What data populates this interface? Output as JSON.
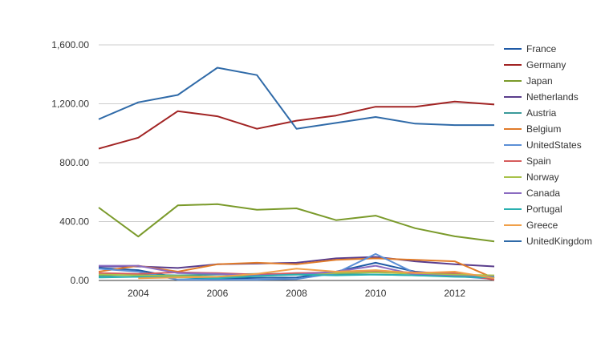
{
  "chart_data": {
    "type": "line",
    "title": "",
    "xlabel": "",
    "ylabel": "",
    "x": [
      2003,
      2004,
      2005,
      2006,
      2007,
      2008,
      2009,
      2010,
      2011,
      2012,
      2013
    ],
    "xlim": [
      2003,
      2013
    ],
    "ylim": [
      0,
      1600
    ],
    "y_ticks": [
      0,
      400,
      800,
      1200,
      1600
    ],
    "y_tick_labels": [
      "0.00",
      "400.00",
      "800.00",
      "1,200.00",
      "1,600.00"
    ],
    "x_ticks": [
      2004,
      2006,
      2008,
      2010,
      2012
    ],
    "x_tick_labels": [
      "2004",
      "2006",
      "2008",
      "2010",
      "2012"
    ],
    "grid": "horizontal",
    "legend_position": "right",
    "series": [
      {
        "name": "France",
        "color": "#1f5aa6",
        "values": [
          85,
          70,
          20,
          12,
          18,
          20,
          60,
          120,
          60,
          40,
          20
        ]
      },
      {
        "name": "Germany",
        "color": "#a12323",
        "values": [
          895,
          970,
          1150,
          1115,
          1030,
          1085,
          1120,
          1180,
          1180,
          1215,
          1195
        ]
      },
      {
        "name": "Japan",
        "color": "#7a9a2a",
        "values": [
          495,
          298,
          510,
          518,
          480,
          490,
          410,
          440,
          355,
          300,
          265
        ]
      },
      {
        "name": "Netherlands",
        "color": "#5a3d8c",
        "values": [
          95,
          95,
          85,
          110,
          115,
          120,
          150,
          160,
          130,
          110,
          95
        ]
      },
      {
        "name": "Austria",
        "color": "#3a9a9a",
        "values": [
          30,
          40,
          35,
          40,
          45,
          45,
          45,
          40,
          35,
          30,
          30
        ]
      },
      {
        "name": "Belgium",
        "color": "#e07b2a",
        "values": [
          60,
          100,
          60,
          110,
          120,
          110,
          140,
          150,
          140,
          130,
          15
        ]
      },
      {
        "name": "UnitedStates",
        "color": "#5b8fd6",
        "values": [
          80,
          60,
          5,
          5,
          5,
          10,
          50,
          180,
          50,
          30,
          10
        ]
      },
      {
        "name": "Spain",
        "color": "#d65c5c",
        "values": [
          50,
          45,
          55,
          50,
          40,
          50,
          55,
          60,
          55,
          50,
          5
        ]
      },
      {
        "name": "Norway",
        "color": "#a8c24a",
        "values": [
          40,
          35,
          30,
          25,
          30,
          40,
          50,
          55,
          45,
          40,
          35
        ]
      },
      {
        "name": "Canada",
        "color": "#8b6cc1",
        "values": [
          100,
          100,
          50,
          45,
          35,
          40,
          60,
          100,
          40,
          30,
          25
        ]
      },
      {
        "name": "Portugal",
        "color": "#2ab0b0",
        "values": [
          20,
          25,
          20,
          15,
          30,
          40,
          35,
          40,
          35,
          25,
          20
        ]
      },
      {
        "name": "Greece",
        "color": "#f0a04a",
        "values": [
          null,
          15,
          20,
          25,
          45,
          80,
          60,
          70,
          50,
          60,
          15
        ]
      },
      {
        "name": "UnitedKingdom",
        "color": "#2f6aa8",
        "values": [
          1095,
          1210,
          1260,
          1445,
          1395,
          1030,
          1070,
          1110,
          1065,
          1055,
          1055
        ]
      }
    ]
  }
}
